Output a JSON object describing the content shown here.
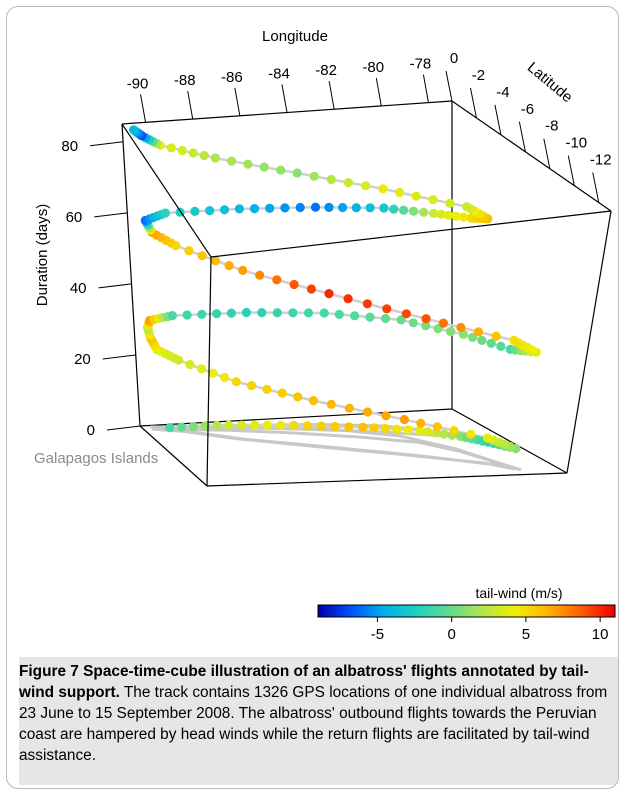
{
  "chart_data": {
    "type": "scatter",
    "subtype": "space-time-cube",
    "xlabel": "Longitude",
    "ylabel": "Latitude",
    "zlabel": "Duration (days)",
    "longitude_ticks": [
      "-90",
      "-88",
      "-86",
      "-84",
      "-82",
      "-80",
      "-78"
    ],
    "latitude_ticks": [
      "0",
      "-2",
      "-4",
      "-6",
      "-8",
      "-10",
      "-12"
    ],
    "duration_ticks": [
      "0",
      "20",
      "40",
      "60",
      "80"
    ],
    "xlim": [
      -91,
      -77
    ],
    "ylim": [
      0,
      -13
    ],
    "zlim": [
      0,
      85
    ],
    "annotation": "Galapagos Islands",
    "colorbar": {
      "label": "tail-wind (m/s)",
      "ticks": [
        "-5",
        "0",
        "5",
        "10"
      ],
      "range": [
        -9,
        11
      ],
      "colors": [
        "#0000a8",
        "#0050ff",
        "#00b0e8",
        "#20d0c0",
        "#60dc90",
        "#b4e64a",
        "#f0ee00",
        "#ffb000",
        "#ff5a00",
        "#ee0000"
      ]
    },
    "track_color": "#c8c8c8",
    "track": [
      {
        "lon": -89.9,
        "lat": -1.0,
        "day": 0.5,
        "wind": -1
      },
      {
        "lon": -87.5,
        "lat": -1.8,
        "day": 1.5,
        "wind": 3
      },
      {
        "lon": -85.0,
        "lat": -3.0,
        "day": 2.2,
        "wind": 5
      },
      {
        "lon": -82.5,
        "lat": -4.5,
        "day": 3.0,
        "wind": 6
      },
      {
        "lon": -80.6,
        "lat": -6.0,
        "day": 3.6,
        "wind": 4
      },
      {
        "lon": -79.6,
        "lat": -8.0,
        "day": 4.5,
        "wind": 1
      },
      {
        "lon": -79.1,
        "lat": -9.8,
        "day": 5.4,
        "wind": -2
      },
      {
        "lon": -78.7,
        "lat": -11.8,
        "day": 6.5,
        "wind": 1
      },
      {
        "lon": -79.4,
        "lat": -10.5,
        "day": 8.0,
        "wind": 4
      },
      {
        "lon": -82.0,
        "lat": -8.2,
        "day": 11.0,
        "wind": 7
      },
      {
        "lon": -85.0,
        "lat": -5.8,
        "day": 14.0,
        "wind": 6
      },
      {
        "lon": -87.6,
        "lat": -3.6,
        "day": 17.0,
        "wind": 5
      },
      {
        "lon": -89.5,
        "lat": -1.5,
        "day": 20.5,
        "wind": 3
      },
      {
        "lon": -90.3,
        "lat": -1.0,
        "day": 23.0,
        "wind": 4
      },
      {
        "lon": -90.5,
        "lat": -0.8,
        "day": 26.0,
        "wind": 6
      },
      {
        "lon": -90.6,
        "lat": -0.8,
        "day": 29.0,
        "wind": 2
      },
      {
        "lon": -90.5,
        "lat": -0.8,
        "day": 31.0,
        "wind": 7
      },
      {
        "lon": -89.5,
        "lat": -0.8,
        "day": 32.0,
        "wind": -1
      },
      {
        "lon": -86.5,
        "lat": -1.5,
        "day": 33.0,
        "wind": -2
      },
      {
        "lon": -83.5,
        "lat": -2.5,
        "day": 33.5,
        "wind": -1
      },
      {
        "lon": -81.0,
        "lat": -4.5,
        "day": 34.2,
        "wind": 0
      },
      {
        "lon": -79.6,
        "lat": -7.5,
        "day": 35.0,
        "wind": 1
      },
      {
        "lon": -78.9,
        "lat": -10.5,
        "day": 36.0,
        "wind": -1
      },
      {
        "lon": -78.5,
        "lat": -12.0,
        "day": 38.0,
        "wind": 4
      },
      {
        "lon": -79.0,
        "lat": -11.0,
        "day": 40.0,
        "wind": 5
      },
      {
        "lon": -81.5,
        "lat": -8.5,
        "day": 43.0,
        "wind": 9
      },
      {
        "lon": -84.5,
        "lat": -6.0,
        "day": 47.0,
        "wind": 10
      },
      {
        "lon": -87.3,
        "lat": -3.8,
        "day": 50.5,
        "wind": 7
      },
      {
        "lon": -89.4,
        "lat": -1.5,
        "day": 53.5,
        "wind": 5
      },
      {
        "lon": -90.2,
        "lat": -0.8,
        "day": 56.0,
        "wind": 7
      },
      {
        "lon": -90.4,
        "lat": -0.6,
        "day": 59.0,
        "wind": -6
      },
      {
        "lon": -89.5,
        "lat": -0.5,
        "day": 60.5,
        "wind": -2
      },
      {
        "lon": -86.5,
        "lat": -1.0,
        "day": 61.5,
        "wind": -4
      },
      {
        "lon": -83.5,
        "lat": -1.6,
        "day": 62.0,
        "wind": -6
      },
      {
        "lon": -81.0,
        "lat": -2.5,
        "day": 62.6,
        "wind": -3
      },
      {
        "lon": -79.5,
        "lat": -3.8,
        "day": 63.2,
        "wind": 3
      },
      {
        "lon": -78.6,
        "lat": -5.2,
        "day": 64.5,
        "wind": 5
      },
      {
        "lon": -78.3,
        "lat": -6.0,
        "day": 66.0,
        "wind": 6
      },
      {
        "lon": -78.8,
        "lat": -5.2,
        "day": 68.0,
        "wind": 3
      },
      {
        "lon": -81.5,
        "lat": -3.6,
        "day": 71.0,
        "wind": 4
      },
      {
        "lon": -84.5,
        "lat": -2.3,
        "day": 74.0,
        "wind": 1
      },
      {
        "lon": -87.5,
        "lat": -1.2,
        "day": 77.0,
        "wind": 2
      },
      {
        "lon": -89.6,
        "lat": -0.6,
        "day": 80.0,
        "wind": 4
      },
      {
        "lon": -90.3,
        "lat": -0.4,
        "day": 82.5,
        "wind": -7
      },
      {
        "lon": -90.6,
        "lat": -0.3,
        "day": 84.0,
        "wind": -4
      }
    ]
  },
  "caption": {
    "label": "Figure 7",
    "title": "Space-time-cube illustration of an albatross' flights annotated by tail-wind support.",
    "body": "The track contains 1326 GPS locations of one individual albatross from 23 June to 15 September 2008. The albatross' outbound flights towards the Peruvian coast are hampered by head winds while the return flights are facilitated by tail-wind assistance."
  }
}
